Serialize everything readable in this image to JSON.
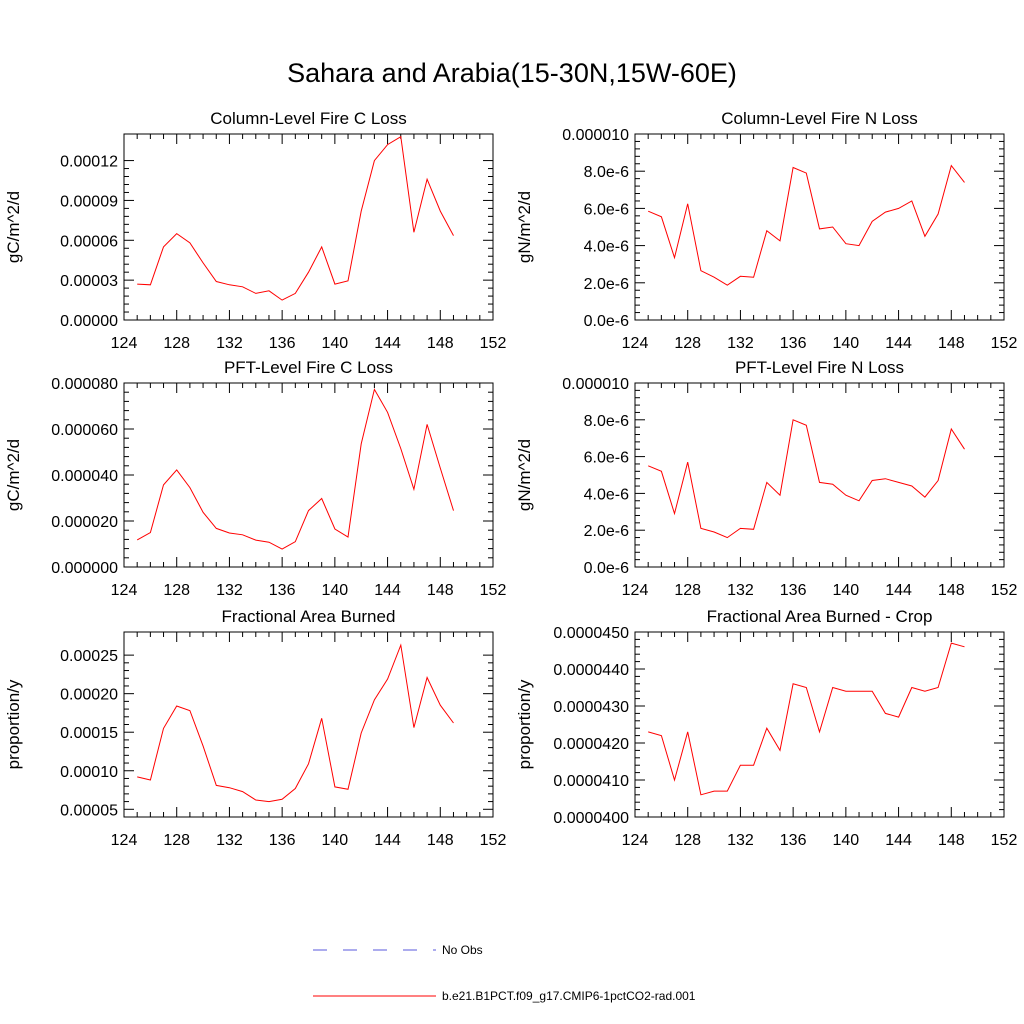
{
  "title": "Sahara and Arabia(15-30N,15W-60E)",
  "colors": {
    "series": "#ff0000",
    "no_obs": "#5a5adc",
    "axis": "#000000"
  },
  "legend": [
    {
      "label": "No Obs",
      "style": "dashed",
      "color": "#5a5adc"
    },
    {
      "label": "b.e21.B1PCT.f09_g17.CMIP6-1pctCO2-rad.001",
      "style": "solid",
      "color": "#ff0000"
    }
  ],
  "chart_data": [
    {
      "type": "line",
      "title": "Column-Level Fire C Loss",
      "ylabel": "gC/m^2/d",
      "xlim": [
        124,
        152
      ],
      "ylim": [
        0,
        0.00014
      ],
      "x_ticks": [
        "124",
        "128",
        "132",
        "136",
        "140",
        "144",
        "148",
        "152"
      ],
      "y_ticks": [
        {
          "value": 0.0,
          "label": "0.00000"
        },
        {
          "value": 3e-05,
          "label": "0.00003"
        },
        {
          "value": 6e-05,
          "label": "0.00006"
        },
        {
          "value": 9e-05,
          "label": "0.00009"
        },
        {
          "value": 0.00012,
          "label": "0.00012"
        }
      ],
      "x": [
        125,
        126,
        127,
        128,
        129,
        130,
        131,
        132,
        133,
        134,
        135,
        136,
        137,
        138,
        139,
        140,
        141,
        142,
        143,
        144,
        145,
        146,
        147,
        148,
        149
      ],
      "y": [
        2.7e-05,
        2.65e-05,
        5.5e-05,
        6.5e-05,
        5.8e-05,
        4.3e-05,
        2.9e-05,
        2.65e-05,
        2.5e-05,
        2e-05,
        2.2e-05,
        1.5e-05,
        2e-05,
        3.6e-05,
        5.5e-05,
        2.7e-05,
        2.95e-05,
        8.2e-05,
        0.00012,
        0.000132,
        0.000138,
        6.6e-05,
        0.000106,
        8.2e-05,
        6.35e-05
      ]
    },
    {
      "type": "line",
      "title": "Column-Level Fire N Loss",
      "ylabel": "gN/m^2/d",
      "xlim": [
        124,
        152
      ],
      "ylim": [
        0,
        1e-05
      ],
      "x_ticks": [
        "124",
        "128",
        "132",
        "136",
        "140",
        "144",
        "148",
        "152"
      ],
      "y_ticks": [
        {
          "value": 0.0,
          "label": "0.0e-6"
        },
        {
          "value": 2e-06,
          "label": "2.0e-6"
        },
        {
          "value": 4e-06,
          "label": "4.0e-6"
        },
        {
          "value": 6e-06,
          "label": "6.0e-6"
        },
        {
          "value": 8e-06,
          "label": "8.0e-6"
        },
        {
          "value": 1e-05,
          "label": "0.000010"
        }
      ],
      "x": [
        125,
        126,
        127,
        128,
        129,
        130,
        131,
        132,
        133,
        134,
        135,
        136,
        137,
        138,
        139,
        140,
        141,
        142,
        143,
        144,
        145,
        146,
        147,
        148,
        149
      ],
      "y": [
        5.85e-06,
        5.55e-06,
        3.35e-06,
        6.25e-06,
        2.65e-06,
        2.3e-06,
        1.87e-06,
        2.35e-06,
        2.3e-06,
        4.8e-06,
        4.25e-06,
        8.2e-06,
        7.9e-06,
        4.9e-06,
        5e-06,
        4.1e-06,
        4e-06,
        5.3e-06,
        5.8e-06,
        6e-06,
        6.4e-06,
        4.5e-06,
        5.7e-06,
        8.3e-06,
        7.4e-06
      ]
    },
    {
      "type": "line",
      "title": "PFT-Level Fire C Loss",
      "ylabel": "gC/m^2/d",
      "xlim": [
        124,
        152
      ],
      "ylim": [
        0,
        8e-05
      ],
      "x_ticks": [
        "124",
        "128",
        "132",
        "136",
        "140",
        "144",
        "148",
        "152"
      ],
      "y_ticks": [
        {
          "value": 0.0,
          "label": "0.000000"
        },
        {
          "value": 2e-05,
          "label": "0.000020"
        },
        {
          "value": 4e-05,
          "label": "0.000040"
        },
        {
          "value": 6e-05,
          "label": "0.000060"
        },
        {
          "value": 8e-05,
          "label": "0.000080"
        }
      ],
      "x": [
        125,
        126,
        127,
        128,
        129,
        130,
        131,
        132,
        133,
        134,
        135,
        136,
        137,
        138,
        139,
        140,
        141,
        142,
        143,
        144,
        145,
        146,
        147,
        148,
        149
      ],
      "y": [
        1.18e-05,
        1.5e-05,
        3.57e-05,
        4.22e-05,
        3.45e-05,
        2.38e-05,
        1.68e-05,
        1.48e-05,
        1.4e-05,
        1.17e-05,
        1.08e-05,
        7.8e-06,
        1.1e-05,
        2.45e-05,
        2.98e-05,
        1.65e-05,
        1.3e-05,
        5.35e-05,
        7.72e-05,
        6.72e-05,
        5.15e-05,
        3.38e-05,
        6.2e-05,
        4.3e-05,
        2.45e-05
      ]
    },
    {
      "type": "line",
      "title": "PFT-Level Fire N Loss",
      "ylabel": "gN/m^2/d",
      "xlim": [
        124,
        152
      ],
      "ylim": [
        0,
        1e-05
      ],
      "x_ticks": [
        "124",
        "128",
        "132",
        "136",
        "140",
        "144",
        "148",
        "152"
      ],
      "y_ticks": [
        {
          "value": 0.0,
          "label": "0.0e-6"
        },
        {
          "value": 2e-06,
          "label": "2.0e-6"
        },
        {
          "value": 4e-06,
          "label": "4.0e-6"
        },
        {
          "value": 6e-06,
          "label": "6.0e-6"
        },
        {
          "value": 8e-06,
          "label": "8.0e-6"
        },
        {
          "value": 1e-05,
          "label": "0.000010"
        }
      ],
      "x": [
        125,
        126,
        127,
        128,
        129,
        130,
        131,
        132,
        133,
        134,
        135,
        136,
        137,
        138,
        139,
        140,
        141,
        142,
        143,
        144,
        145,
        146,
        147,
        148,
        149
      ],
      "y": [
        5.5e-06,
        5.2e-06,
        2.9e-06,
        5.7e-06,
        2.1e-06,
        1.9e-06,
        1.6e-06,
        2.1e-06,
        2.05e-06,
        4.6e-06,
        3.9e-06,
        8e-06,
        7.7e-06,
        4.6e-06,
        4.5e-06,
        3.9e-06,
        3.6e-06,
        4.7e-06,
        4.8e-06,
        4.6e-06,
        4.4e-06,
        3.8e-06,
        4.7e-06,
        7.5e-06,
        6.4e-06
      ]
    },
    {
      "type": "line",
      "title": "Fractional Area Burned",
      "ylabel": "proportion/y",
      "xlim": [
        124,
        152
      ],
      "ylim": [
        4e-05,
        0.00028
      ],
      "x_ticks": [
        "124",
        "128",
        "132",
        "136",
        "140",
        "144",
        "148",
        "152"
      ],
      "y_ticks": [
        {
          "value": 5e-05,
          "label": "0.00005"
        },
        {
          "value": 0.0001,
          "label": "0.00010"
        },
        {
          "value": 0.00015,
          "label": "0.00015"
        },
        {
          "value": 0.0002,
          "label": "0.00020"
        },
        {
          "value": 0.00025,
          "label": "0.00025"
        }
      ],
      "x": [
        125,
        126,
        127,
        128,
        129,
        130,
        131,
        132,
        133,
        134,
        135,
        136,
        137,
        138,
        139,
        140,
        141,
        142,
        143,
        144,
        145,
        146,
        147,
        148,
        149
      ],
      "y": [
        9.2e-05,
        8.8e-05,
        0.000155,
        0.000184,
        0.000178,
        0.000132,
        8.1e-05,
        7.8e-05,
        7.3e-05,
        6.2e-05,
        6e-05,
        6.3e-05,
        7.7e-05,
        0.000109,
        0.000168,
        7.9e-05,
        7.6e-05,
        0.000149,
        0.000192,
        0.000219,
        0.000263,
        0.000156,
        0.000221,
        0.000185,
        0.000162
      ]
    },
    {
      "type": "line",
      "title": "Fractional Area Burned - Crop",
      "ylabel": "proportion/y",
      "xlim": [
        124,
        152
      ],
      "ylim": [
        4e-05,
        4.5e-05
      ],
      "x_ticks": [
        "124",
        "128",
        "132",
        "136",
        "140",
        "144",
        "148",
        "152"
      ],
      "y_ticks": [
        {
          "value": 4e-05,
          "label": "0.0000400"
        },
        {
          "value": 4.1e-05,
          "label": "0.0000410"
        },
        {
          "value": 4.2e-05,
          "label": "0.0000420"
        },
        {
          "value": 4.3e-05,
          "label": "0.0000430"
        },
        {
          "value": 4.4e-05,
          "label": "0.0000440"
        },
        {
          "value": 4.5e-05,
          "label": "0.0000450"
        }
      ],
      "x": [
        125,
        126,
        127,
        128,
        129,
        130,
        131,
        132,
        133,
        134,
        135,
        136,
        137,
        138,
        139,
        140,
        141,
        142,
        143,
        144,
        145,
        146,
        147,
        148,
        149
      ],
      "y": [
        4.23e-05,
        4.22e-05,
        4.1e-05,
        4.23e-05,
        4.06e-05,
        4.07e-05,
        4.07e-05,
        4.14e-05,
        4.14e-05,
        4.24e-05,
        4.18e-05,
        4.36e-05,
        4.35e-05,
        4.23e-05,
        4.35e-05,
        4.34e-05,
        4.34e-05,
        4.34e-05,
        4.28e-05,
        4.27e-05,
        4.35e-05,
        4.34e-05,
        4.35e-05,
        4.47e-05,
        4.46e-05
      ]
    }
  ]
}
